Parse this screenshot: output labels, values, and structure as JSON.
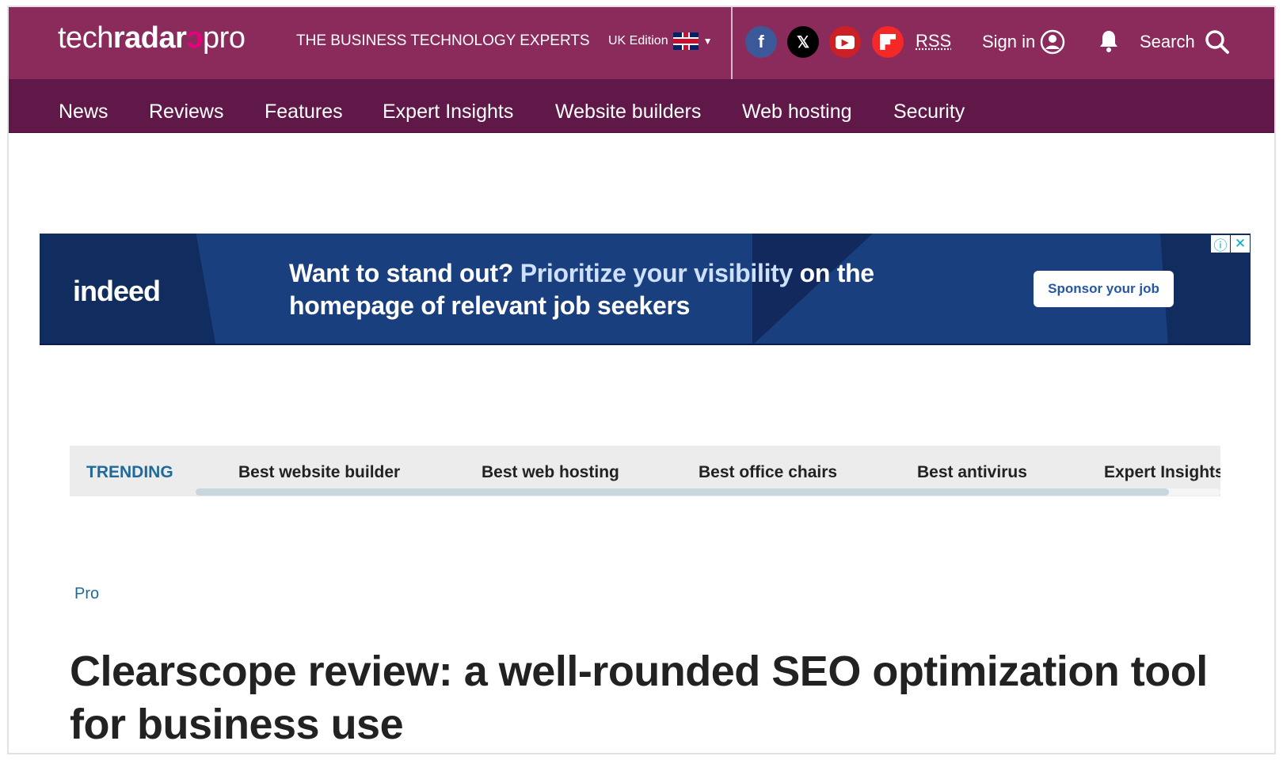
{
  "header": {
    "logo": {
      "part1": "tech",
      "part2": "radar",
      "part3": "pro"
    },
    "tagline": "THE BUSINESS TECHNOLOGY EXPERTS",
    "edition": "UK Edition",
    "social": {
      "facebook": "f",
      "x": "𝕏",
      "rss": "RSS"
    },
    "sign_in": "Sign in",
    "search": "Search"
  },
  "nav": [
    "News",
    "Reviews",
    "Features",
    "Expert Insights",
    "Website builders",
    "Web hosting",
    "Security"
  ],
  "ad": {
    "brand": "indeed",
    "line1a": "Want to stand out? ",
    "line1b": "Prioritize your visibility",
    "line1c": " on the",
    "line2": "homepage of relevant job seekers",
    "cta": "Sponsor your job",
    "info": "ⓘ",
    "close": "✕"
  },
  "trending": {
    "label": "TRENDING",
    "items": [
      "Best website builder",
      "Best web hosting",
      "Best office chairs",
      "Best antivirus",
      "Expert Insights"
    ],
    "scroll_fraction": 0.95
  },
  "article": {
    "category": "Pro",
    "title": "Clearscope review: a well-rounded SEO optimization tool for business use"
  },
  "colors": {
    "header": "#8b2b5c",
    "nav": "#5f1847",
    "ad": "#1a3f7f",
    "accent": "#e6007e",
    "trending_label": "#1f6a9a"
  }
}
